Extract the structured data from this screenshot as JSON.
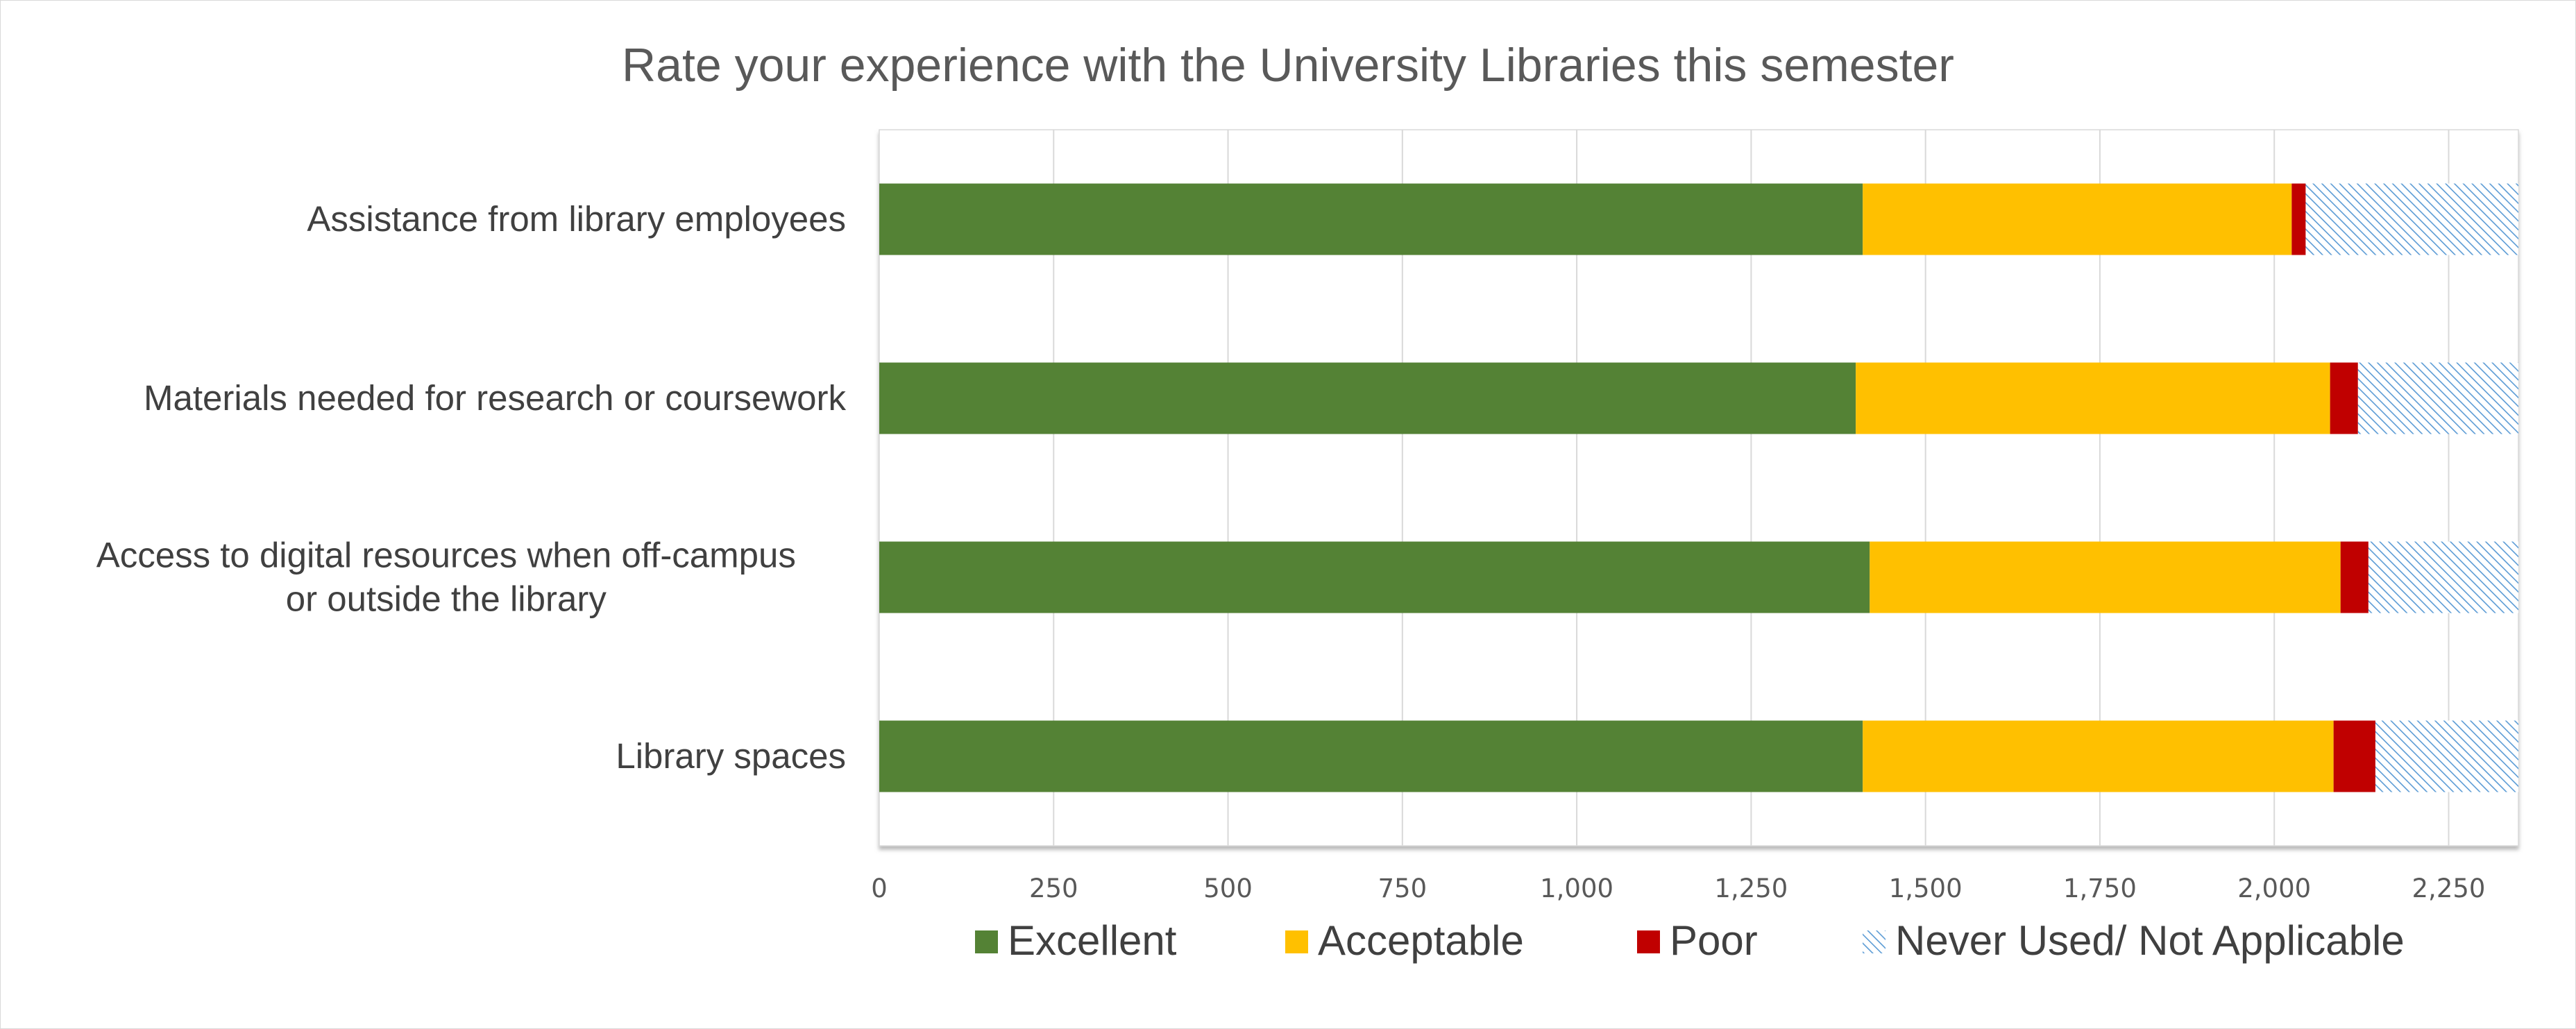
{
  "chart_data": {
    "type": "bar",
    "orientation": "horizontal",
    "stacked": true,
    "title": "Rate your experience with the University Libraries this semester",
    "categories": [
      "Assistance from library employees",
      "Materials needed for research or coursework",
      "Access to digital resources when off-campus or outside the library",
      "Library spaces"
    ],
    "category_lines": [
      [
        "Assistance from library employees"
      ],
      [
        "Materials needed for research or coursework"
      ],
      [
        "Access to digital resources when off-campus",
        "or outside the library"
      ],
      [
        "Library spaces"
      ]
    ],
    "series": [
      {
        "name": "Excellent",
        "color": "#548235",
        "pattern": "solid",
        "values": [
          1410,
          1400,
          1420,
          1410
        ]
      },
      {
        "name": "Acceptable",
        "color": "#ffc000",
        "pattern": "solid",
        "values": [
          615,
          680,
          675,
          675
        ]
      },
      {
        "name": "Poor",
        "color": "#c00000",
        "pattern": "solid",
        "values": [
          20,
          40,
          40,
          60
        ]
      },
      {
        "name": "Never Used/ Not Applicable",
        "color": "#5b9bd5",
        "pattern": "diagonal-hatch",
        "values": [
          305,
          230,
          215,
          205
        ]
      }
    ],
    "xlim": [
      0,
      2350
    ],
    "xticks": [
      0,
      250,
      500,
      750,
      1000,
      1250,
      1500,
      1750,
      2000,
      2250
    ],
    "xtick_labels": [
      "0",
      "250",
      "500",
      "750",
      "1,000",
      "1,250",
      "1,500",
      "1,750",
      "2,000",
      "2,250"
    ],
    "grid": true,
    "legend_position": "bottom"
  }
}
